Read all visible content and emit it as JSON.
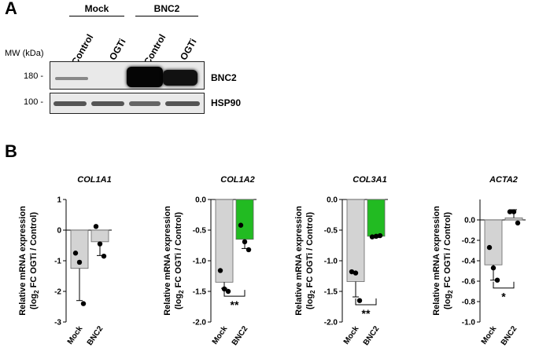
{
  "panel_a": {
    "letter": "A",
    "groups": [
      "Mock",
      "BNC2"
    ],
    "lanes": [
      "Control",
      "OGTi",
      "Control",
      "OGTi"
    ],
    "mw_header": "MW (kDa)",
    "blots": [
      {
        "mw": "180 -",
        "label": "BNC2",
        "band_intensity": [
          0.15,
          0.0,
          1.0,
          0.9
        ]
      },
      {
        "mw": "100 -",
        "label": "HSP90",
        "band_intensity": [
          0.6,
          0.6,
          0.55,
          0.6
        ]
      }
    ]
  },
  "panel_b": {
    "letter": "B"
  },
  "chart_data": [
    {
      "type": "bar",
      "title": "COL1A1",
      "ylabel_line1": "Relative mRNA expression",
      "ylabel_line2_pre": "(log",
      "ylabel_sub": "2",
      "ylabel_line2_post": " FC OGTi / Control)",
      "categories": [
        "Mock",
        "BNC2"
      ],
      "values": [
        -1.25,
        -0.38
      ],
      "errors": [
        1.05,
        0.45
      ],
      "points": [
        [
          -0.75,
          -1.05,
          -2.4
        ],
        [
          0.12,
          -0.45,
          -0.85
        ]
      ],
      "colors": [
        "#d3d3d3",
        "#d3d3d3"
      ],
      "ylim": [
        -3,
        1
      ],
      "yticks": [
        "1",
        "0",
        "-1",
        "-2",
        "-3"
      ],
      "significance": ""
    },
    {
      "type": "bar",
      "title": "COL1A2",
      "ylabel_line1": "Relative mRNA expression",
      "ylabel_line2_pre": "(log",
      "ylabel_sub": "2",
      "ylabel_line2_post": " FC OGTi / Control)",
      "categories": [
        "Mock",
        "BNC2"
      ],
      "values": [
        -1.35,
        -0.65
      ],
      "errors": [
        0.1,
        0.15
      ],
      "points": [
        [
          -1.16,
          -1.46,
          -1.5
        ],
        [
          -0.42,
          -0.69,
          -0.82
        ]
      ],
      "colors": [
        "#d3d3d3",
        "#22bb22"
      ],
      "ylim": [
        -2,
        0
      ],
      "yticks": [
        "0.0",
        "-0.5",
        "-1.0",
        "-1.5",
        "-2.0"
      ],
      "significance": "**"
    },
    {
      "type": "bar",
      "title": "COL3A1",
      "ylabel_line1": "Relative mRNA expression",
      "ylabel_line2_pre": "(log",
      "ylabel_sub": "2",
      "ylabel_line2_post": " FC OGTi / Control)",
      "categories": [
        "Mock",
        "BNC2"
      ],
      "values": [
        -1.34,
        -0.6
      ],
      "errors": [
        0.25,
        0.02
      ],
      "points": [
        [
          -1.18,
          -1.2,
          -1.65
        ],
        [
          -0.61,
          -0.6,
          -0.59
        ]
      ],
      "colors": [
        "#d3d3d3",
        "#22bb22"
      ],
      "ylim": [
        -2,
        0
      ],
      "yticks": [
        "0.0",
        "-0.5",
        "-1.0",
        "-1.5",
        "-2.0"
      ],
      "significance": "**"
    },
    {
      "type": "bar",
      "title": "ACTA2",
      "ylabel_line1": "Relative mRNA expression",
      "ylabel_line2_pre": "(log",
      "ylabel_sub": "2",
      "ylabel_line2_post": " FC OGTi / Control)",
      "categories": [
        "Mock",
        "BNC2"
      ],
      "values": [
        -0.44,
        0.02
      ],
      "errors": [
        0.15,
        0.08
      ],
      "points": [
        [
          -0.27,
          -0.47,
          -0.59
        ],
        [
          0.08,
          0.08,
          -0.03
        ]
      ],
      "colors": [
        "#d3d3d3",
        "#d3d3d3"
      ],
      "ylim": [
        -1,
        0.2
      ],
      "yticks": [
        "0.0",
        "-0.2",
        "-0.4",
        "-0.6",
        "-0.8",
        "-1.0"
      ],
      "significance": "*"
    }
  ]
}
